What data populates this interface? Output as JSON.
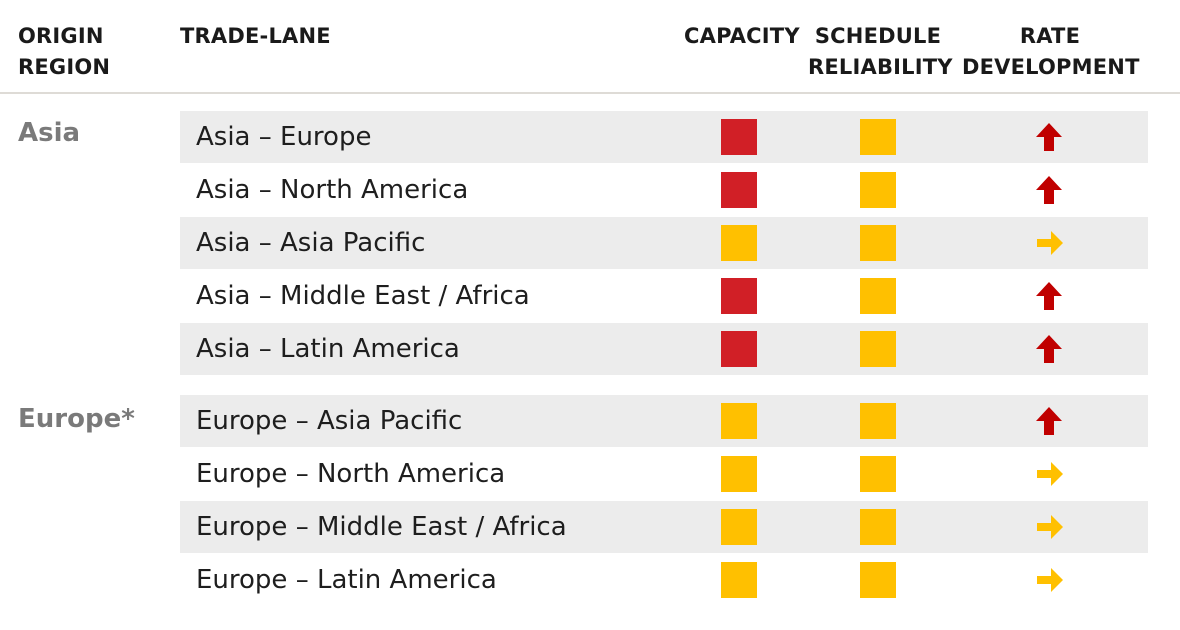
{
  "headers": {
    "origin": [
      "ORIGIN",
      "REGION"
    ],
    "lane": "TRADE-LANE",
    "capacity": "CAPACITY",
    "schedule": [
      "SCHEDULE",
      "RELIABILITY"
    ],
    "rate": [
      "RATE",
      "DEVELOPMENT"
    ]
  },
  "colors": {
    "red": "#d11f26",
    "amber": "#ffc000",
    "arrow_up": "#c00000",
    "arrow_right": "#ffc000"
  },
  "groups": [
    {
      "region": "Asia",
      "rows": [
        {
          "lane": "Asia – Europe",
          "capacity": "red",
          "schedule": "amber",
          "rate": "up"
        },
        {
          "lane": "Asia – North America",
          "capacity": "red",
          "schedule": "amber",
          "rate": "up"
        },
        {
          "lane": "Asia – Asia Pacific",
          "capacity": "amber",
          "schedule": "amber",
          "rate": "right"
        },
        {
          "lane": "Asia – Middle East / Africa",
          "capacity": "red",
          "schedule": "amber",
          "rate": "up"
        },
        {
          "lane": "Asia – Latin America",
          "capacity": "red",
          "schedule": "amber",
          "rate": "up"
        }
      ]
    },
    {
      "region": "Europe*",
      "rows": [
        {
          "lane": "Europe – Asia Pacific",
          "capacity": "amber",
          "schedule": "amber",
          "rate": "up"
        },
        {
          "lane": "Europe – North America",
          "capacity": "amber",
          "schedule": "amber",
          "rate": "right"
        },
        {
          "lane": "Europe – Middle East / Africa",
          "capacity": "amber",
          "schedule": "amber",
          "rate": "right"
        },
        {
          "lane": "Europe – Latin America",
          "capacity": "amber",
          "schedule": "amber",
          "rate": "right"
        }
      ]
    }
  ]
}
